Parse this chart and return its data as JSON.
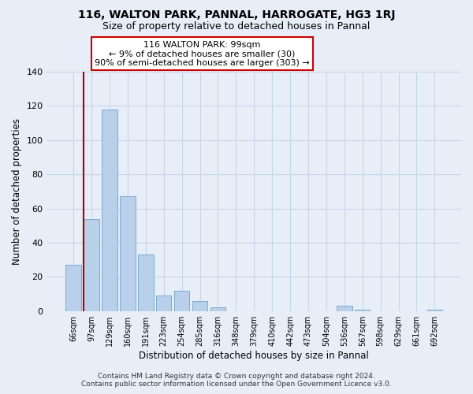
{
  "title": "116, WALTON PARK, PANNAL, HARROGATE, HG3 1RJ",
  "subtitle": "Size of property relative to detached houses in Pannal",
  "xlabel": "Distribution of detached houses by size in Pannal",
  "ylabel": "Number of detached properties",
  "categories": [
    "66sqm",
    "97sqm",
    "129sqm",
    "160sqm",
    "191sqm",
    "223sqm",
    "254sqm",
    "285sqm",
    "316sqm",
    "348sqm",
    "379sqm",
    "410sqm",
    "442sqm",
    "473sqm",
    "504sqm",
    "536sqm",
    "567sqm",
    "598sqm",
    "629sqm",
    "661sqm",
    "692sqm"
  ],
  "values": [
    27,
    54,
    118,
    67,
    33,
    9,
    12,
    6,
    2,
    0,
    0,
    0,
    0,
    0,
    0,
    3,
    1,
    0,
    0,
    0,
    1
  ],
  "bar_color": "#b8d0ea",
  "bar_edge_color": "#7aabcf",
  "vertical_line_x": 0.575,
  "vertical_line_color": "#aa0000",
  "ylim": [
    0,
    140
  ],
  "yticks": [
    0,
    20,
    40,
    60,
    80,
    100,
    120,
    140
  ],
  "annotation_text": "116 WALTON PARK: 99sqm\n← 9% of detached houses are smaller (30)\n90% of semi-detached houses are larger (303) →",
  "annotation_box_color": "#ffffff",
  "annotation_box_edge": "#cc0000",
  "footer_line1": "Contains HM Land Registry data © Crown copyright and database right 2024.",
  "footer_line2": "Contains public sector information licensed under the Open Government Licence v3.0.",
  "background_color": "#e8eef8",
  "grid_color": "#c8d4e8",
  "title_fontsize": 10,
  "subtitle_fontsize": 9
}
